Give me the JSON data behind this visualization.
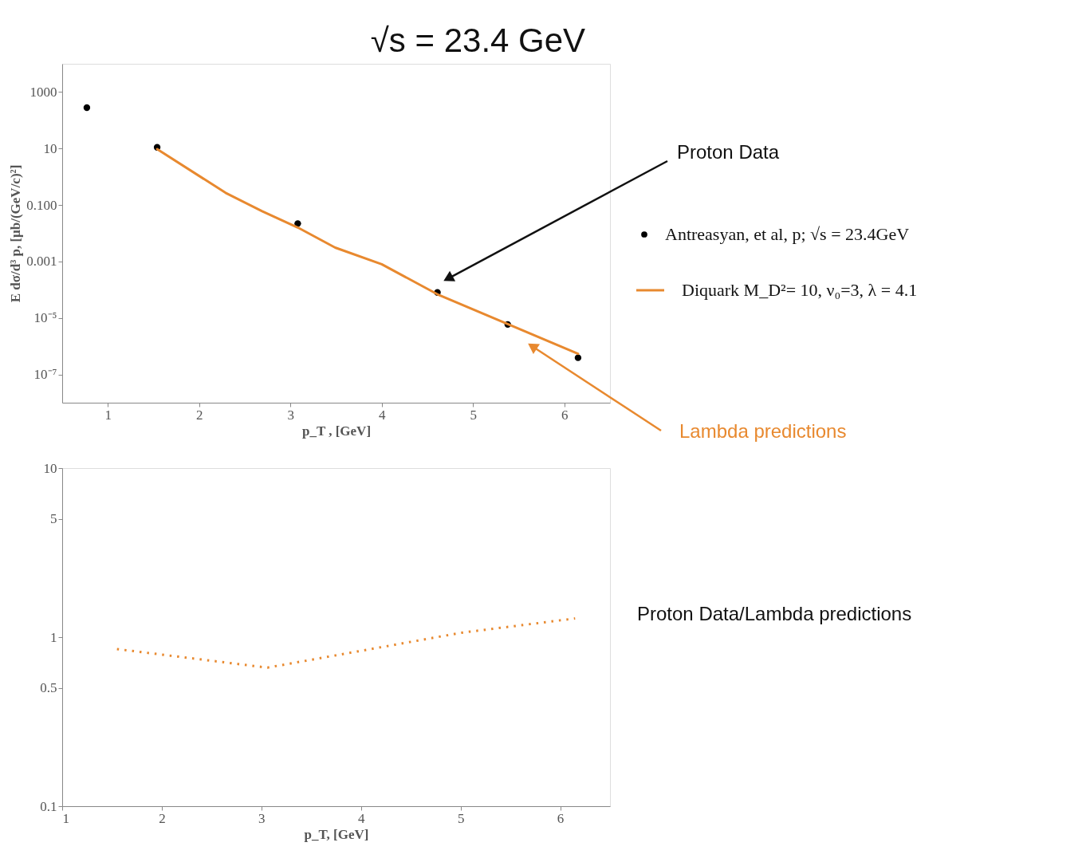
{
  "chart_data": [
    {
      "type": "scatter",
      "title": "√s = 23.4 GeV",
      "xlabel": "p_T , [GeV]",
      "ylabel": "E dσ/d³ p, [μb/(GeV/c)²]",
      "log": "y",
      "legend": "right",
      "xlim": [
        0.5,
        6.5
      ],
      "xticks": [
        1,
        2,
        3,
        4,
        5,
        6
      ],
      "ylim": [
        1e-08,
        10000
      ],
      "yticks": [
        1000,
        10,
        {
          "value": 0.1,
          "label": "0.100"
        },
        0.001,
        {
          "value": 1e-05,
          "label": "10⁻⁵"
        },
        {
          "value": 1e-07,
          "label": "10⁻⁷"
        }
      ],
      "series": [
        {
          "name": "Antreasyan, et al, p; √s = 23.4GeV",
          "type": "scatter",
          "marker": "circle",
          "color": "#000000",
          "x": [
            0.77,
            1.54,
            3.08,
            4.61,
            5.38,
            6.15
          ],
          "values": [
            280,
            11,
            0.022,
            8e-05,
            5.9e-06,
            3.9e-07
          ]
        },
        {
          "name": "Diquark M_D²= 10, ν₀=3, λ = 4.1",
          "type": "line",
          "color": "#e8892f",
          "x": [
            1.54,
            2.29,
            2.69,
            3.08,
            3.49,
            4.0,
            4.61,
            6.15
          ],
          "values": [
            9.5,
            0.27,
            0.06,
            0.016,
            0.0031,
            0.0008,
            6.9e-05,
            5.4e-07
          ]
        }
      ],
      "annotations": [
        "Proton Data",
        "Lambda predictions"
      ]
    },
    {
      "type": "line",
      "xlabel": "p_T, [GeV]",
      "log": "y",
      "line_style": "dotted",
      "xlim": [
        1,
        6.5
      ],
      "xticks": [
        1,
        2,
        3,
        4,
        5,
        6
      ],
      "ylim": [
        0.1,
        10
      ],
      "yticks": [
        0.1,
        0.5,
        1,
        5,
        10
      ],
      "series": [
        {
          "color": "#e8892f",
          "x": [
            1.55,
            3.06,
            4.0,
            5.0,
            6.15
          ],
          "values": [
            0.85,
            0.66,
            0.83,
            1.06,
            1.29
          ]
        }
      ],
      "annotations": [
        "Proton Data/Lambda predictions"
      ]
    }
  ]
}
